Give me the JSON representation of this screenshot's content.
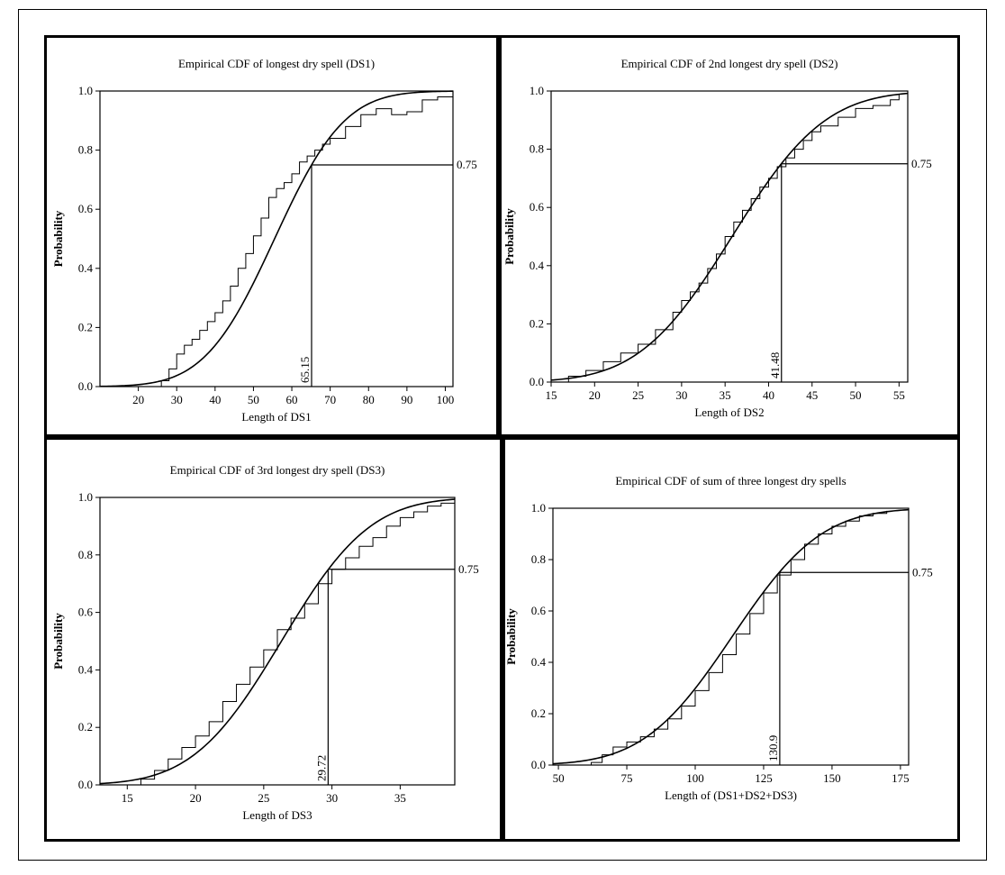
{
  "chart_data": [
    {
      "type": "line",
      "title": "Empirical CDF of  longest dry spell (DS1)",
      "xlabel": "Length of DS1",
      "ylabel": "Probability",
      "xlim": [
        10,
        102
      ],
      "ylim": [
        0,
        1
      ],
      "xticks": [
        20,
        30,
        40,
        50,
        60,
        70,
        80,
        90,
        100
      ],
      "yticks": [
        0.0,
        0.2,
        0.4,
        0.6,
        0.8,
        1.0
      ],
      "fitted_cdf": {
        "mean": 55.5,
        "sd": 14.3
      },
      "ecdf": {
        "x": [
          10,
          26,
          28,
          30,
          32,
          34,
          36,
          38,
          40,
          42,
          44,
          46,
          48,
          50,
          52,
          54,
          56,
          58,
          60,
          62,
          64,
          66,
          68,
          70,
          74,
          78,
          82,
          86,
          90,
          94,
          98,
          102
        ],
        "y": [
          0.0,
          0.02,
          0.06,
          0.11,
          0.14,
          0.16,
          0.19,
          0.22,
          0.25,
          0.29,
          0.34,
          0.4,
          0.45,
          0.51,
          0.57,
          0.64,
          0.67,
          0.69,
          0.72,
          0.76,
          0.78,
          0.8,
          0.82,
          0.84,
          0.88,
          0.92,
          0.94,
          0.92,
          0.93,
          0.97,
          0.98,
          0.98
        ]
      },
      "reference": {
        "probability": 0.75,
        "probability_label": "0.75",
        "value": 65.15,
        "value_label": "65.15"
      }
    },
    {
      "type": "line",
      "title": "Empirical CDF of 2nd longest dry spell (DS2)",
      "xlabel": "Length of DS2",
      "ylabel": "Probability",
      "xlim": [
        15,
        56
      ],
      "ylim": [
        0,
        1
      ],
      "xticks": [
        15,
        20,
        25,
        30,
        35,
        40,
        45,
        50,
        55
      ],
      "yticks": [
        0.0,
        0.2,
        0.4,
        0.6,
        0.8,
        1.0
      ],
      "fitted_cdf": {
        "mean": 35.8,
        "sd": 8.4
      },
      "ecdf": {
        "x": [
          15,
          17,
          19,
          21,
          23,
          25,
          27,
          29,
          30,
          31,
          32,
          33,
          34,
          35,
          36,
          37,
          38,
          39,
          40,
          41,
          42,
          43,
          44,
          45,
          46,
          48,
          50,
          52,
          54,
          55
        ],
        "y": [
          0.0,
          0.02,
          0.04,
          0.07,
          0.1,
          0.13,
          0.18,
          0.24,
          0.28,
          0.31,
          0.34,
          0.39,
          0.44,
          0.5,
          0.55,
          0.59,
          0.63,
          0.67,
          0.7,
          0.74,
          0.77,
          0.8,
          0.83,
          0.86,
          0.88,
          0.91,
          0.94,
          0.95,
          0.97,
          0.99
        ]
      },
      "reference": {
        "probability": 0.75,
        "probability_label": "0.75",
        "value": 41.48,
        "value_label": "41.48"
      }
    },
    {
      "type": "line",
      "title": "Empirical CDF of 3rd longest dry spell (DS3)",
      "xlabel": "Length of DS3",
      "ylabel": "Probability",
      "xlim": [
        13,
        39
      ],
      "ylim": [
        0,
        1
      ],
      "xticks": [
        15,
        20,
        25,
        30,
        35
      ],
      "yticks": [
        0.0,
        0.2,
        0.4,
        0.6,
        0.8,
        1.0
      ],
      "fitted_cdf": {
        "mean": 26.3,
        "sd": 5.1
      },
      "ecdf": {
        "x": [
          13,
          16,
          17,
          18,
          19,
          20,
          21,
          22,
          23,
          24,
          25,
          26,
          27,
          28,
          29,
          30,
          31,
          32,
          33,
          34,
          35,
          36,
          37,
          38,
          39
        ],
        "y": [
          0.0,
          0.02,
          0.05,
          0.09,
          0.13,
          0.17,
          0.22,
          0.29,
          0.35,
          0.41,
          0.47,
          0.54,
          0.58,
          0.63,
          0.7,
          0.75,
          0.79,
          0.83,
          0.86,
          0.9,
          0.93,
          0.95,
          0.97,
          0.98,
          0.99
        ]
      },
      "reference": {
        "probability": 0.75,
        "probability_label": "0.75",
        "value": 29.72,
        "value_label": "29.72"
      }
    },
    {
      "type": "line",
      "title": "Empirical CDF of  sum of three longest dry spells",
      "xlabel": "Length of  (DS1+DS2+DS3)",
      "ylabel": "Probability",
      "xlim": [
        48,
        178
      ],
      "ylim": [
        0,
        1
      ],
      "xticks": [
        50,
        75,
        100,
        125,
        150,
        175
      ],
      "yticks": [
        0.0,
        0.2,
        0.4,
        0.6,
        0.8,
        1.0
      ],
      "fitted_cdf": {
        "mean": 113.5,
        "sd": 25.5
      },
      "ecdf": {
        "x": [
          57,
          62,
          66,
          70,
          75,
          80,
          85,
          90,
          95,
          100,
          105,
          110,
          115,
          120,
          125,
          130,
          135,
          140,
          145,
          150,
          155,
          160,
          165,
          170
        ],
        "y": [
          0.0,
          0.01,
          0.04,
          0.07,
          0.09,
          0.11,
          0.14,
          0.18,
          0.23,
          0.29,
          0.36,
          0.43,
          0.51,
          0.59,
          0.67,
          0.74,
          0.8,
          0.86,
          0.9,
          0.93,
          0.95,
          0.97,
          0.98,
          0.99
        ]
      },
      "reference": {
        "probability": 0.75,
        "probability_label": "0.75",
        "value": 130.9,
        "value_label": "130.9"
      }
    }
  ]
}
